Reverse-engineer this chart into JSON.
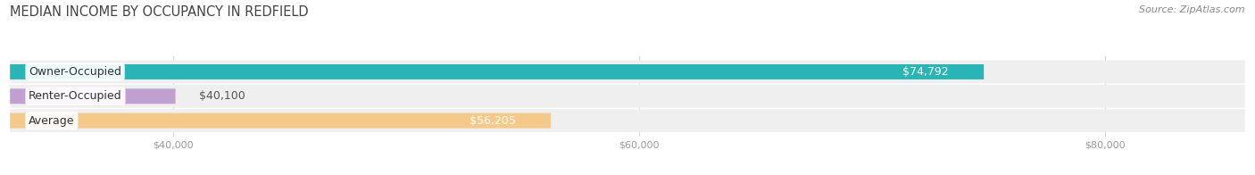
{
  "title": "MEDIAN INCOME BY OCCUPANCY IN REDFIELD",
  "source": "Source: ZipAtlas.com",
  "categories": [
    "Owner-Occupied",
    "Renter-Occupied",
    "Average"
  ],
  "values": [
    74792,
    40100,
    56205
  ],
  "bar_colors": [
    "#29b5b5",
    "#c0a0d0",
    "#f5c98a"
  ],
  "value_labels": [
    "$74,792",
    "$40,100",
    "$56,205"
  ],
  "xlim_left": 33000,
  "xlim_right": 86000,
  "xticks": [
    40000,
    60000,
    80000
  ],
  "xtick_labels": [
    "$40,000",
    "$60,000",
    "$80,000"
  ],
  "title_fontsize": 10.5,
  "source_fontsize": 8,
  "label_fontsize": 9,
  "value_fontsize": 9,
  "bar_height": 0.62,
  "bg_band_color": "#efefef",
  "fig_bg": "#ffffff",
  "grid_color": "#d8d8d8",
  "tick_color": "#999999"
}
